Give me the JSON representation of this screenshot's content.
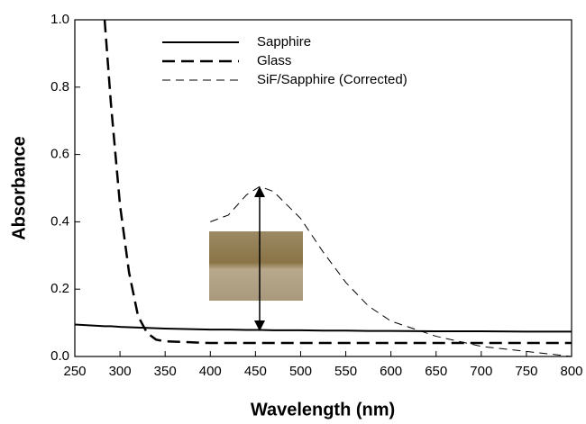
{
  "chart_data": {
    "type": "line",
    "xlabel": "Wavelength (nm)",
    "ylabel": "Absorbance",
    "x": [
      250,
      283,
      290,
      300,
      310,
      320,
      330,
      340,
      350,
      400,
      420,
      440,
      455,
      470,
      500,
      525,
      550,
      575,
      600,
      650,
      700,
      750,
      800
    ],
    "series": [
      {
        "name": "Sapphire",
        "color": "#000000",
        "values": [
          0.095,
          0.09,
          0.09,
          0.088,
          0.087,
          0.086,
          0.085,
          0.084,
          0.083,
          0.08,
          0.08,
          0.079,
          0.079,
          0.078,
          0.078,
          0.077,
          0.077,
          0.076,
          0.076,
          0.075,
          0.075,
          0.074,
          0.074
        ]
      },
      {
        "name": "Glass",
        "color": "#000000",
        "values": [
          null,
          1.0,
          0.75,
          0.45,
          0.25,
          0.12,
          0.07,
          0.05,
          0.045,
          0.04,
          0.04,
          0.04,
          0.04,
          0.04,
          0.04,
          0.04,
          0.04,
          0.04,
          0.04,
          0.04,
          0.04,
          0.04,
          0.04
        ]
      },
      {
        "name": "SiF/Sapphire (Corrected)",
        "color": "#000000",
        "values": [
          null,
          null,
          null,
          null,
          null,
          null,
          null,
          null,
          null,
          0.4,
          0.42,
          0.48,
          0.505,
          0.49,
          0.41,
          0.31,
          0.22,
          0.15,
          0.105,
          0.06,
          0.03,
          0.015,
          0.0
        ]
      }
    ],
    "xlim": [
      250,
      800
    ],
    "ylim": [
      0,
      1
    ],
    "xticks": [
      250,
      300,
      350,
      400,
      450,
      500,
      550,
      600,
      650,
      700,
      750,
      800
    ],
    "yticks": [
      {
        "value": 0,
        "label": "0.0"
      },
      {
        "value": 0.2,
        "label": "0.2"
      },
      {
        "value": 0.4,
        "label": "0.4"
      },
      {
        "value": 0.6,
        "label": "0.6"
      },
      {
        "value": 0.8,
        "label": "0.8"
      },
      {
        "value": 1,
        "label": "1.0"
      }
    ],
    "legend": "upper left",
    "grid": false
  }
}
